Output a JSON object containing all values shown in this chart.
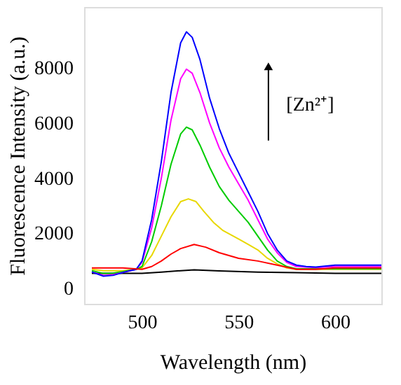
{
  "chart_data": {
    "type": "line",
    "xlabel": "Wavelength (nm)",
    "ylabel": "Fluorescence Intensity (a.u.)",
    "xlim": [
      470,
      624
    ],
    "ylim": [
      -550,
      10200
    ],
    "xticks": [
      500,
      550,
      600
    ],
    "yticks": [
      0,
      2000,
      4000,
      6000,
      8000
    ],
    "grid": false,
    "legend": false,
    "marker": "none",
    "line_style": "solid",
    "annotations": [
      "[Zn²⁺]"
    ],
    "series": [
      {
        "color": "#000000",
        "x": [
          474,
          500,
          510,
          520,
          527,
          540,
          560,
          580,
          600,
          624
        ],
        "values": [
          550,
          550,
          600,
          650,
          680,
          640,
          600,
          580,
          550,
          550
        ]
      },
      {
        "color": "#e8d800",
        "x": [
          474,
          480,
          490,
          497,
          500,
          505,
          510,
          515,
          520,
          524,
          528,
          532,
          537,
          542,
          550,
          555,
          560,
          565,
          570,
          575,
          580,
          600,
          624
        ],
        "values": [
          700,
          650,
          650,
          700,
          750,
          1200,
          1900,
          2600,
          3150,
          3250,
          3150,
          2800,
          2400,
          2100,
          1800,
          1600,
          1400,
          1100,
          900,
          750,
          700,
          700,
          700
        ]
      },
      {
        "color": "#00cc00",
        "x": [
          474,
          480,
          485,
          492,
          497,
          500,
          505,
          510,
          515,
          520,
          523,
          526,
          530,
          535,
          540,
          545,
          550,
          555,
          560,
          565,
          570,
          575,
          580,
          600,
          624
        ],
        "values": [
          650,
          550,
          560,
          640,
          700,
          800,
          1700,
          3000,
          4500,
          5600,
          5850,
          5750,
          5200,
          4400,
          3700,
          3200,
          2800,
          2400,
          1900,
          1400,
          1000,
          800,
          720,
          720,
          720
        ]
      },
      {
        "color": "#ff00ff",
        "x": [
          474,
          480,
          485,
          492,
          497,
          500,
          505,
          510,
          515,
          520,
          523,
          526,
          530,
          535,
          540,
          545,
          550,
          555,
          560,
          565,
          570,
          575,
          580,
          590,
          600,
          624
        ],
        "values": [
          600,
          480,
          500,
          620,
          700,
          950,
          2200,
          4000,
          6100,
          7600,
          7950,
          7800,
          7100,
          6000,
          5100,
          4400,
          3800,
          3200,
          2500,
          1800,
          1300,
          950,
          800,
          760,
          800,
          800
        ]
      },
      {
        "color": "#0000ff",
        "x": [
          474,
          480,
          485,
          492,
          497,
          500,
          505,
          510,
          515,
          520,
          523,
          526,
          530,
          535,
          540,
          545,
          550,
          555,
          560,
          565,
          570,
          575,
          580,
          585,
          590,
          600,
          624
        ],
        "values": [
          600,
          450,
          480,
          620,
          700,
          1000,
          2500,
          4600,
          7100,
          8900,
          9300,
          9100,
          8300,
          6900,
          5800,
          4900,
          4200,
          3500,
          2800,
          2000,
          1400,
          1000,
          850,
          800,
          780,
          850,
          850
        ]
      },
      {
        "color": "#ff0000",
        "x": [
          474,
          490,
          500,
          505,
          510,
          515,
          520,
          527,
          533,
          540,
          550,
          560,
          570,
          580,
          590,
          600,
          624
        ],
        "values": [
          750,
          750,
          700,
          800,
          1000,
          1250,
          1450,
          1600,
          1500,
          1300,
          1100,
          1000,
          850,
          700,
          700,
          750,
          750
        ]
      }
    ]
  }
}
